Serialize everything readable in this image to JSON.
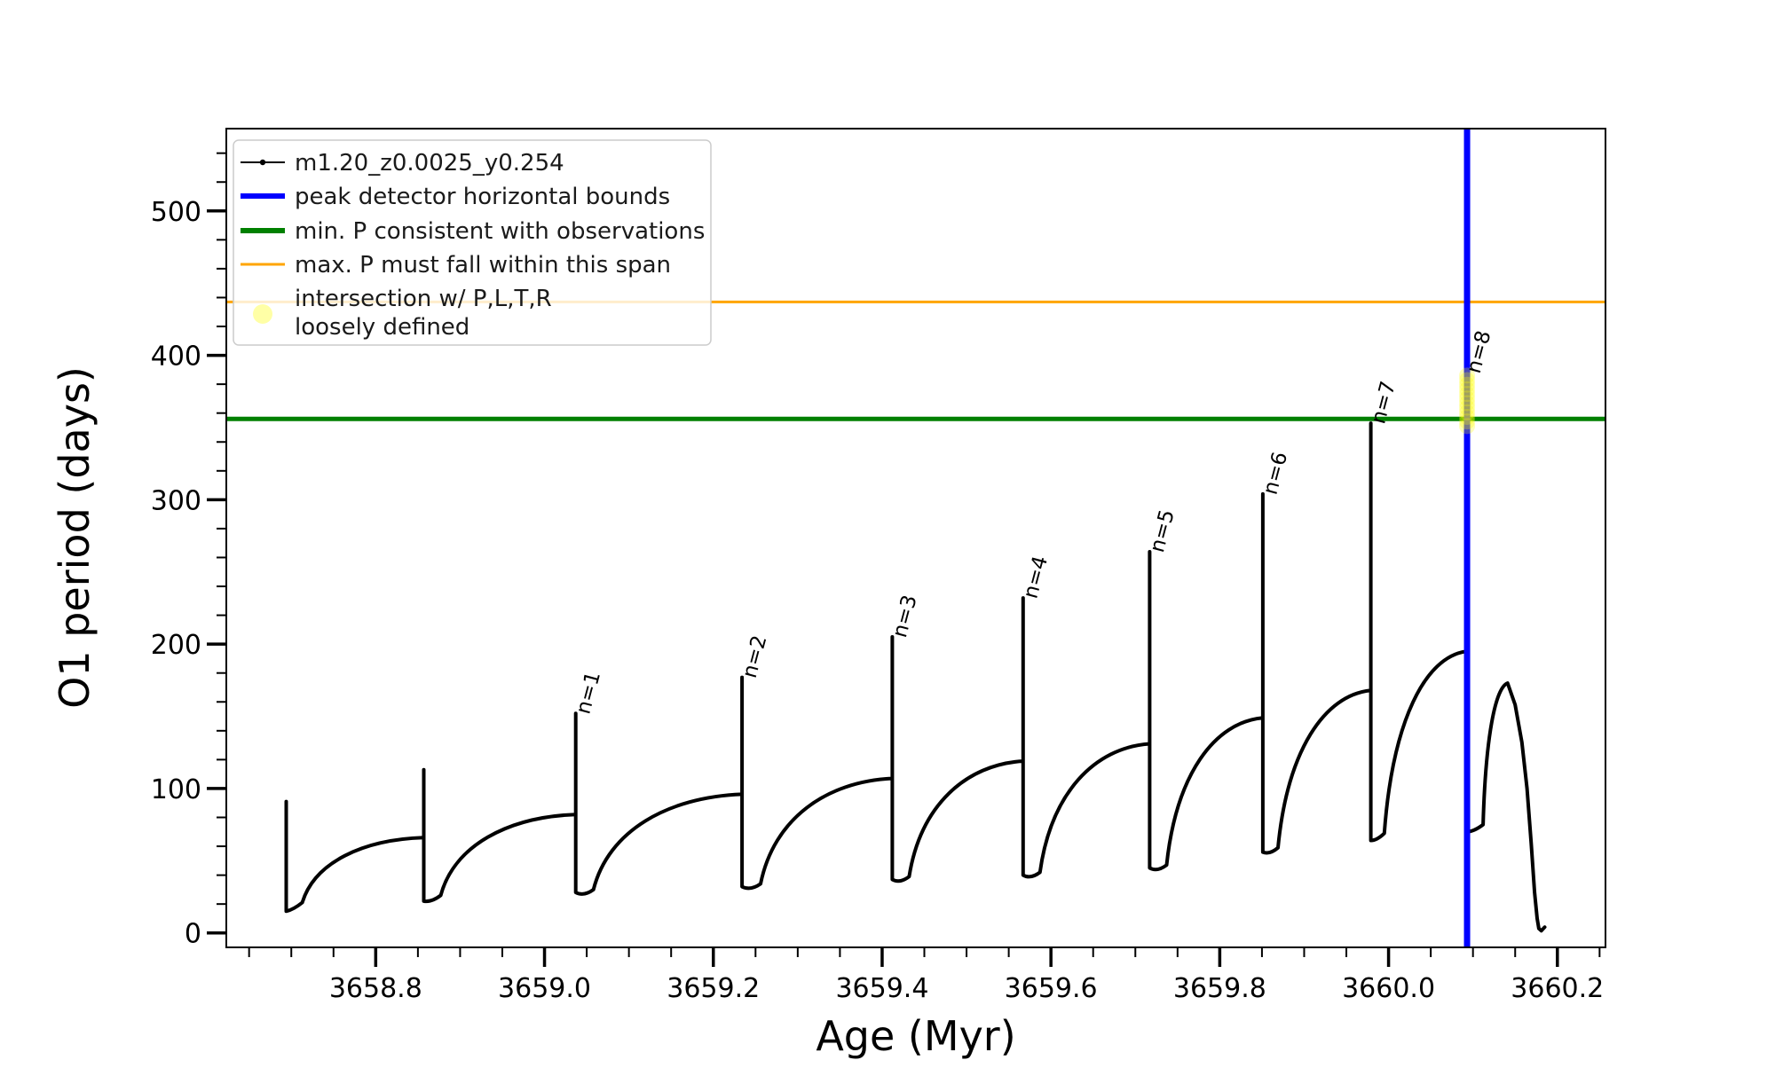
{
  "figure": {
    "background": "#ffffff",
    "axis_color": "#000000"
  },
  "chart_data": {
    "type": "line",
    "title": "",
    "xlabel": "Age (Myr)",
    "ylabel": "O1 period (days)",
    "xlim": [
      3658.623,
      3660.257
    ],
    "ylim": [
      -10,
      557
    ],
    "x_major_ticks": [
      3658.8,
      3659.0,
      3659.2,
      3659.4,
      3659.6,
      3659.8,
      3660.0,
      3660.2
    ],
    "x_major_tick_labels": [
      "3658.8",
      "3659.0",
      "3659.2",
      "3659.4",
      "3659.6",
      "3659.8",
      "3660.0",
      "3660.2"
    ],
    "x_minor_tick_step": 0.05,
    "y_major_ticks": [
      0,
      100,
      200,
      300,
      400,
      500
    ],
    "y_major_tick_labels": [
      "0",
      "100",
      "200",
      "300",
      "400",
      "500"
    ],
    "y_minor_tick_step": 20,
    "grid": false,
    "legend_position": "upper left",
    "series_name": "m1.20_z0.0025_y0.254",
    "series_color": "#000000",
    "cycles": [
      {
        "spike_x": 3658.694,
        "peak": 91,
        "low": 15,
        "dip_x": 3658.713,
        "dip_y": 21,
        "end_x": 3658.857,
        "end_y": 66,
        "label": ""
      },
      {
        "spike_x": 3658.857,
        "peak": 113,
        "low": 22,
        "dip_x": 3658.877,
        "dip_y": 26,
        "end_x": 3659.037,
        "end_y": 82,
        "label": ""
      },
      {
        "spike_x": 3659.037,
        "peak": 152,
        "low": 28,
        "dip_x": 3659.058,
        "dip_y": 30,
        "end_x": 3659.234,
        "end_y": 96,
        "label": "n=1"
      },
      {
        "spike_x": 3659.234,
        "peak": 177,
        "low": 32,
        "dip_x": 3659.256,
        "dip_y": 34,
        "end_x": 3659.412,
        "end_y": 107,
        "label": "n=2"
      },
      {
        "spike_x": 3659.412,
        "peak": 205,
        "low": 37,
        "dip_x": 3659.432,
        "dip_y": 39,
        "end_x": 3659.567,
        "end_y": 119,
        "label": "n=3"
      },
      {
        "spike_x": 3659.567,
        "peak": 232,
        "low": 40,
        "dip_x": 3659.587,
        "dip_y": 42,
        "end_x": 3659.717,
        "end_y": 131,
        "label": "n=4"
      },
      {
        "spike_x": 3659.717,
        "peak": 264,
        "low": 45,
        "dip_x": 3659.737,
        "dip_y": 47,
        "end_x": 3659.851,
        "end_y": 149,
        "label": "n=5"
      },
      {
        "spike_x": 3659.851,
        "peak": 304,
        "low": 56,
        "dip_x": 3659.869,
        "dip_y": 59,
        "end_x": 3659.979,
        "end_y": 168,
        "label": "n=6"
      },
      {
        "spike_x": 3659.979,
        "peak": 353,
        "low": 64,
        "dip_x": 3659.995,
        "dip_y": 69,
        "end_x": 3660.092,
        "end_y": 195,
        "label": "n=7"
      },
      {
        "spike_x": 3660.092,
        "peak": 388,
        "low": 70,
        "dip_x": 3660.112,
        "dip_y": 75,
        "end_x": 3660.141,
        "end_y": 173,
        "label": "n=8"
      }
    ],
    "tail": [
      [
        3660.141,
        173
      ],
      [
        3660.15,
        158
      ],
      [
        3660.158,
        132
      ],
      [
        3660.164,
        100
      ],
      [
        3660.169,
        62
      ],
      [
        3660.173,
        28
      ],
      [
        3660.176,
        10
      ],
      [
        3660.178,
        3
      ],
      [
        3660.181,
        1.5
      ],
      [
        3660.185,
        4
      ]
    ],
    "vline": {
      "x": 3660.093,
      "color": "#0000ff",
      "width": 7
    },
    "hlines": [
      {
        "y": 437,
        "color": "#ffa500",
        "width": 3
      },
      {
        "y": 356,
        "color": "#008000",
        "width": 5
      }
    ],
    "intersection": {
      "x": 3660.093,
      "y_min": 351,
      "y_max": 386,
      "n_markers": 12,
      "radius": 9,
      "color": "#ffff00",
      "opacity": 0.28
    }
  },
  "legend": {
    "border_color": "#cccccc",
    "background": "rgba(255,255,255,0.8)",
    "entries": [
      {
        "label": "m1.20_z0.0025_y0.254",
        "color": "#000000",
        "handle": "line-with-dot"
      },
      {
        "label": "peak detector horizontal bounds",
        "color": "#0000ff",
        "handle": "thick-line"
      },
      {
        "label": "min. P consistent with observations",
        "color": "#008000",
        "handle": "thick-line"
      },
      {
        "label": "max. P must fall within this span",
        "color": "#ffa500",
        "handle": "line"
      },
      {
        "label": "intersection w/ P,L,T,R",
        "label2": "loosely defined",
        "color": "#ffff00",
        "handle": "dot"
      }
    ]
  }
}
